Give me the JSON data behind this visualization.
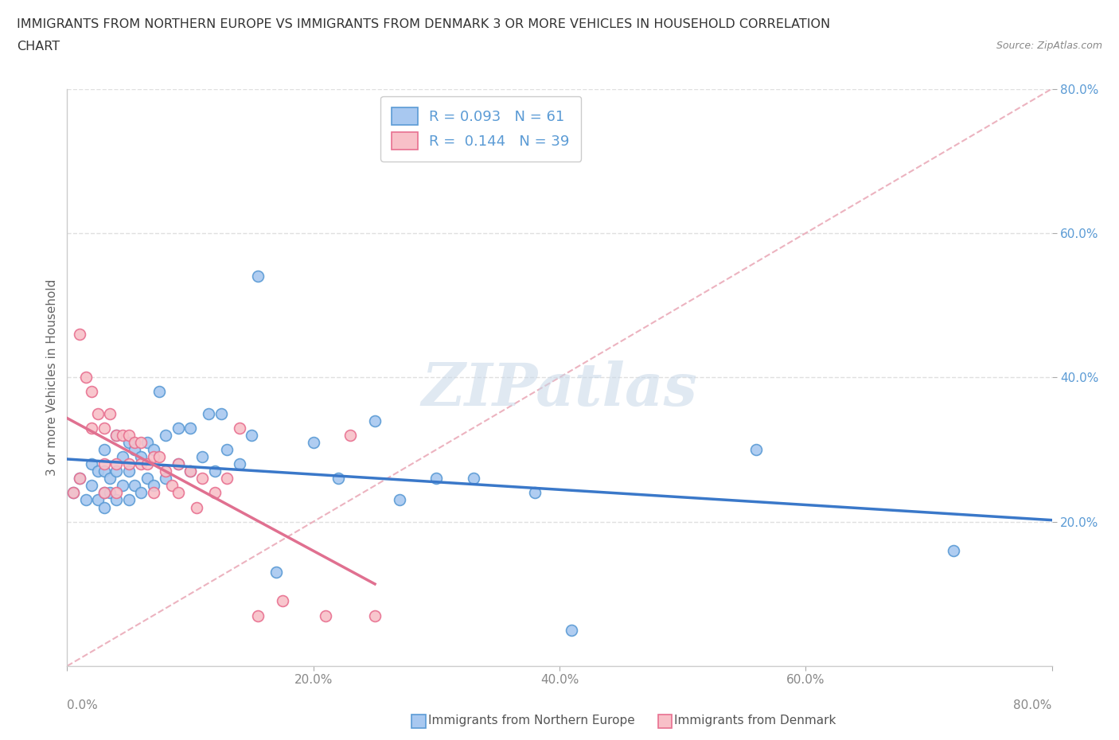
{
  "title_line1": "IMMIGRANTS FROM NORTHERN EUROPE VS IMMIGRANTS FROM DENMARK 3 OR MORE VEHICLES IN HOUSEHOLD CORRELATION",
  "title_line2": "CHART",
  "source": "Source: ZipAtlas.com",
  "ylabel": "3 or more Vehicles in Household",
  "xlim": [
    0.0,
    0.8
  ],
  "ylim": [
    0.0,
    0.8
  ],
  "xticks": [
    0.0,
    0.2,
    0.4,
    0.6,
    0.8
  ],
  "yticks": [
    0.2,
    0.4,
    0.6,
    0.8
  ],
  "xticklabels_inner": [
    "20.0%",
    "40.0%",
    "60.0%"
  ],
  "xticklabels_edges": [
    "0.0%",
    "80.0%"
  ],
  "yticklabels": [
    "20.0%",
    "40.0%",
    "60.0%",
    "80.0%"
  ],
  "R_blue": 0.093,
  "N_blue": 61,
  "R_pink": 0.144,
  "N_pink": 39,
  "blue_fill": "#A8C8F0",
  "blue_edge": "#5B9BD5",
  "pink_fill": "#F8C0C8",
  "pink_edge": "#E87090",
  "blue_line_color": "#3A78C9",
  "pink_line_color": "#E07090",
  "dash_line_color": "#E8A0B0",
  "legend_label_blue": "Immigrants from Northern Europe",
  "legend_label_pink": "Immigrants from Denmark",
  "watermark": "ZIPatlas",
  "blue_scatter_x": [
    0.005,
    0.01,
    0.015,
    0.02,
    0.02,
    0.025,
    0.025,
    0.03,
    0.03,
    0.03,
    0.03,
    0.035,
    0.035,
    0.04,
    0.04,
    0.04,
    0.045,
    0.045,
    0.05,
    0.05,
    0.05,
    0.055,
    0.055,
    0.06,
    0.06,
    0.065,
    0.065,
    0.07,
    0.07,
    0.075,
    0.08,
    0.08,
    0.09,
    0.09,
    0.1,
    0.1,
    0.11,
    0.115,
    0.12,
    0.125,
    0.13,
    0.14,
    0.15,
    0.155,
    0.17,
    0.2,
    0.22,
    0.25,
    0.27,
    0.3,
    0.33,
    0.38,
    0.41,
    0.56,
    0.72
  ],
  "blue_scatter_y": [
    0.24,
    0.26,
    0.23,
    0.25,
    0.28,
    0.23,
    0.27,
    0.22,
    0.24,
    0.27,
    0.3,
    0.24,
    0.26,
    0.23,
    0.27,
    0.32,
    0.25,
    0.29,
    0.23,
    0.27,
    0.31,
    0.25,
    0.3,
    0.24,
    0.29,
    0.26,
    0.31,
    0.25,
    0.3,
    0.38,
    0.26,
    0.32,
    0.28,
    0.33,
    0.27,
    0.33,
    0.29,
    0.35,
    0.27,
    0.35,
    0.3,
    0.28,
    0.32,
    0.54,
    0.13,
    0.31,
    0.26,
    0.34,
    0.23,
    0.26,
    0.26,
    0.24,
    0.05,
    0.3,
    0.16
  ],
  "pink_scatter_x": [
    0.005,
    0.01,
    0.01,
    0.015,
    0.02,
    0.02,
    0.025,
    0.03,
    0.03,
    0.03,
    0.035,
    0.04,
    0.04,
    0.04,
    0.045,
    0.05,
    0.05,
    0.055,
    0.06,
    0.06,
    0.065,
    0.07,
    0.07,
    0.075,
    0.08,
    0.085,
    0.09,
    0.09,
    0.1,
    0.105,
    0.11,
    0.12,
    0.13,
    0.14,
    0.155,
    0.175,
    0.21,
    0.23,
    0.25
  ],
  "pink_scatter_y": [
    0.24,
    0.46,
    0.26,
    0.4,
    0.38,
    0.33,
    0.35,
    0.33,
    0.28,
    0.24,
    0.35,
    0.32,
    0.28,
    0.24,
    0.32,
    0.32,
    0.28,
    0.31,
    0.31,
    0.28,
    0.28,
    0.29,
    0.24,
    0.29,
    0.27,
    0.25,
    0.28,
    0.24,
    0.27,
    0.22,
    0.26,
    0.24,
    0.26,
    0.33,
    0.07,
    0.09,
    0.07,
    0.32,
    0.07
  ]
}
